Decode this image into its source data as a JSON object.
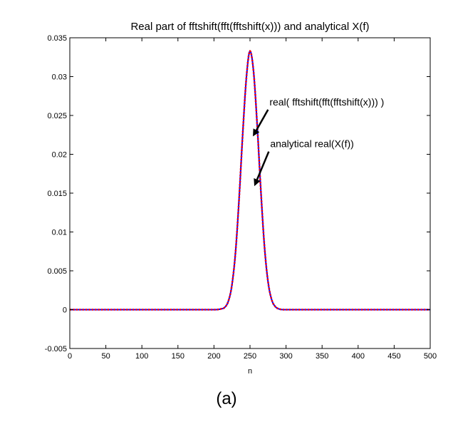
{
  "caption": "(a)",
  "chart_data": {
    "type": "line",
    "title": "Real part of fftshift(fft(fftshift(x))) and analytical X(f)",
    "xlabel": "n",
    "ylabel": "",
    "xlim": [
      0,
      500
    ],
    "ylim": [
      -0.005,
      0.035
    ],
    "xticks": [
      0,
      50,
      100,
      150,
      200,
      250,
      300,
      350,
      400,
      450,
      500
    ],
    "xtick_labels": [
      "0",
      "50",
      "100",
      "150",
      "200",
      "250",
      "300",
      "350",
      "400",
      "450",
      "500"
    ],
    "yticks": [
      -0.005,
      0,
      0.005,
      0.01,
      0.015,
      0.02,
      0.025,
      0.03,
      0.035
    ],
    "ytick_labels": [
      "-0.005",
      "0",
      "0.005",
      "0.01",
      "0.015",
      "0.02",
      "0.025",
      "0.03",
      "0.035"
    ],
    "grid": false,
    "series": [
      {
        "label": "real( fftshift(fft(fftshift(x))) )",
        "color": "#0000ff",
        "style": "solid",
        "x": [
          0,
          50,
          100,
          150,
          200,
          210,
          215,
          220,
          225,
          230,
          235,
          240,
          245,
          250,
          255,
          260,
          265,
          270,
          275,
          280,
          285,
          290,
          300,
          350,
          400,
          450,
          500
        ],
        "y": [
          0,
          0,
          0,
          0,
          0,
          0.0001,
          0.0003,
          0.0011,
          0.0032,
          0.0075,
          0.0145,
          0.0228,
          0.0299,
          0.0333,
          0.0306,
          0.0237,
          0.0154,
          0.0082,
          0.0036,
          0.0013,
          0.0004,
          0.0001,
          0,
          0,
          0,
          0,
          0
        ]
      },
      {
        "label": "analytical real(X(f))",
        "color": "#ff0000",
        "style": "dotted",
        "x": [
          0,
          50,
          100,
          150,
          200,
          210,
          215,
          220,
          225,
          230,
          235,
          240,
          245,
          250,
          255,
          260,
          265,
          270,
          275,
          280,
          285,
          290,
          300,
          350,
          400,
          450,
          500
        ],
        "y": [
          0,
          0,
          0,
          0,
          0,
          0.0001,
          0.0003,
          0.0011,
          0.0032,
          0.0075,
          0.0145,
          0.0228,
          0.0299,
          0.0333,
          0.0306,
          0.0237,
          0.0154,
          0.0082,
          0.0036,
          0.0013,
          0.0004,
          0.0001,
          0,
          0,
          0,
          0,
          0
        ]
      }
    ],
    "annotations": [
      {
        "text": "real( fftshift(fft(fftshift(x))) )",
        "text_at": [
          277,
          0.0263
        ],
        "arrow_to": [
          254,
          0.0223
        ]
      },
      {
        "text": "analytical real(X(f))",
        "text_at": [
          278,
          0.0209
        ],
        "arrow_to": [
          256,
          0.0159
        ]
      }
    ]
  }
}
